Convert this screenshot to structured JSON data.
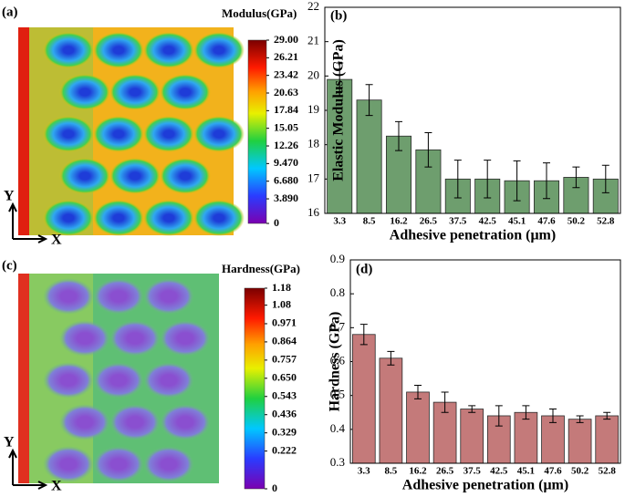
{
  "maps": [
    {
      "panel": "(a)",
      "title": "Modulus(GPa)",
      "y_label": "Y",
      "x_label": "X",
      "colorbar_ticks": [
        {
          "value": 29,
          "label": "29.00"
        },
        26.21,
        23.42,
        20.63,
        17.84,
        15.05,
        12.26,
        {
          "value": 9.47,
          "label": "9.470"
        },
        {
          "value": 6.68,
          "label": "6.680"
        },
        {
          "value": 3.89,
          "label": "3.890"
        },
        0
      ]
    },
    {
      "panel": "(c)",
      "title": "Hardness(GPa)",
      "y_label": "Y",
      "x_label": "X",
      "colorbar_ticks": [
        1.18,
        1.08,
        0.971,
        0.864,
        0.757,
        {
          "value": 0.65,
          "label": "0.650"
        },
        0.543,
        0.436,
        0.329,
        0.222,
        0
      ]
    }
  ],
  "chart_data": [
    {
      "type": "bar",
      "panel": "(b)",
      "x_label": "Adhesive penetration (μm)",
      "y_label": "Elastic Modulus (GPa)",
      "categories": [
        "3.3",
        "8.5",
        "16.2",
        "26.5",
        "37.5",
        "42.5",
        "45.1",
        "47.6",
        "50.2",
        "52.8"
      ],
      "values": [
        19.9,
        19.3,
        18.25,
        17.85,
        17.0,
        17.0,
        16.95,
        16.95,
        17.05,
        17.0
      ],
      "errors": [
        0.48,
        0.45,
        0.42,
        0.5,
        0.55,
        0.55,
        0.58,
        0.52,
        0.3,
        0.4
      ],
      "color": "#6e9e6e",
      "ylim": [
        16,
        22
      ],
      "yticks": [
        16,
        17,
        18,
        19,
        20,
        21,
        22
      ]
    },
    {
      "type": "bar",
      "panel": "(d)",
      "x_label": "Adhesive penetration (μm)",
      "y_label": "Hardness (GPa)",
      "categories": [
        "3.3",
        "8.5",
        "16.2",
        "26.5",
        "37.5",
        "42.5",
        "45.1",
        "47.6",
        "50.2",
        "52.8"
      ],
      "values": [
        0.68,
        0.61,
        0.51,
        0.48,
        0.46,
        0.44,
        0.45,
        0.44,
        0.43,
        0.44
      ],
      "errors": [
        0.03,
        0.02,
        0.02,
        0.03,
        0.01,
        0.03,
        0.02,
        0.02,
        0.01,
        0.01
      ],
      "color": "#c47a7a",
      "ylim": [
        0.3,
        0.9
      ],
      "yticks": [
        0.3,
        0.4,
        0.5,
        0.6,
        0.7,
        0.8,
        0.9
      ]
    }
  ]
}
